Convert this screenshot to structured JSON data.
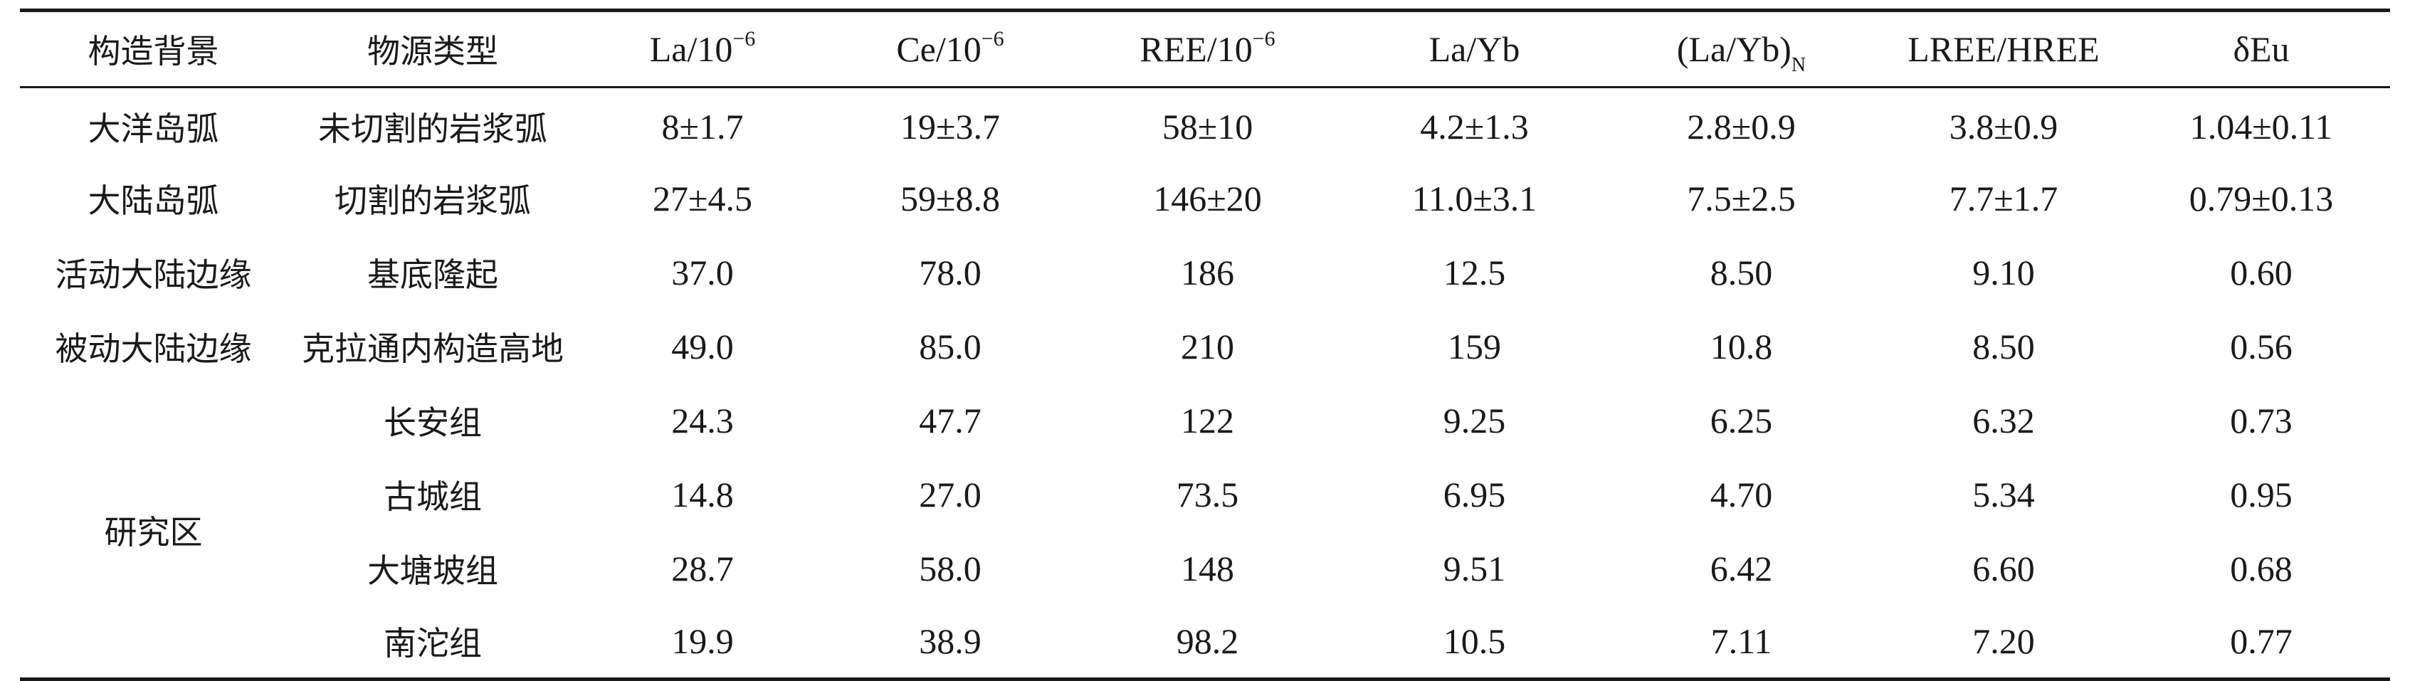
{
  "table": {
    "headers": [
      {
        "text": "构造背景",
        "cjk": true
      },
      {
        "text": "物源类型",
        "cjk": true
      },
      {
        "text": "La/10",
        "sup": "−6"
      },
      {
        "text": "Ce/10",
        "sup": "−6"
      },
      {
        "text": "REE/10",
        "sup": "−6"
      },
      {
        "text": "La/Yb"
      },
      {
        "text": "(La/Yb)",
        "sub": "N"
      },
      {
        "text": "LREE/HREE"
      },
      {
        "text": "δEu"
      }
    ],
    "rows": [
      {
        "setting": "大洋岛弧",
        "source": "未切割的岩浆弧",
        "values": [
          "8±1.7",
          "19±3.7",
          "58±10",
          "4.2±1.3",
          "2.8±0.9",
          "3.8±0.9",
          "1.04±0.11"
        ]
      },
      {
        "setting": "大陆岛弧",
        "source": "切割的岩浆弧",
        "values": [
          "27±4.5",
          "59±8.8",
          "146±20",
          "11.0±3.1",
          "7.5±2.5",
          "7.7±1.7",
          "0.79±0.13"
        ]
      },
      {
        "setting": "活动大陆边缘",
        "source": "基底隆起",
        "values": [
          "37.0",
          "78.0",
          "186",
          "12.5",
          "8.50",
          "9.10",
          "0.60"
        ]
      },
      {
        "setting": "被动大陆边缘",
        "source": "克拉通内构造高地",
        "values": [
          "49.0",
          "85.0",
          "210",
          "159",
          "10.8",
          "8.50",
          "0.56"
        ]
      },
      {
        "setting": "研究区",
        "setting_rowspan": 4,
        "source": "长安组",
        "values": [
          "24.3",
          "47.7",
          "122",
          "9.25",
          "6.25",
          "6.32",
          "0.73"
        ]
      },
      {
        "source": "古城组",
        "values": [
          "14.8",
          "27.0",
          "73.5",
          "6.95",
          "4.70",
          "5.34",
          "0.95"
        ]
      },
      {
        "source": "大塘坡组",
        "values": [
          "28.7",
          "58.0",
          "148",
          "9.51",
          "6.42",
          "6.60",
          "0.68"
        ]
      },
      {
        "source": "南沱组",
        "values": [
          "19.9",
          "38.9",
          "98.2",
          "10.5",
          "7.11",
          "7.20",
          "0.77"
        ]
      }
    ]
  }
}
